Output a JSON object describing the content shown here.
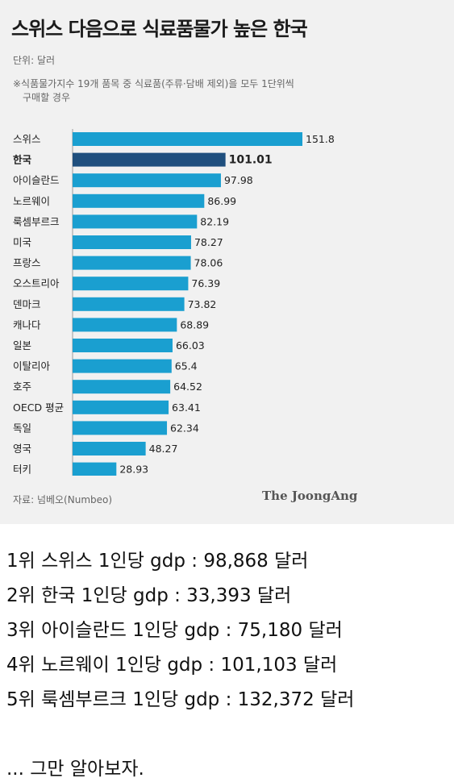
{
  "chart_data": {
    "type": "bar",
    "orientation": "horizontal",
    "title": "스위스 다음으로 식료품물가 높은 한국",
    "unit": "단위: 달러",
    "note": [
      "※식품물가지수 19개 품목 중 식료품(주류·담배 제외)을 모두 1단위씩",
      "구매할 경우"
    ],
    "categories": [
      "스위스",
      "한국",
      "아이슬란드",
      "노르웨이",
      "룩셈부르크",
      "미국",
      "프랑스",
      "오스트리아",
      "덴마크",
      "캐나다",
      "일본",
      "이탈리아",
      "호주",
      "OECD 평균",
      "독일",
      "영국",
      "터키"
    ],
    "values": [
      151.8,
      101.01,
      97.98,
      86.99,
      82.19,
      78.27,
      78.06,
      76.39,
      73.82,
      68.89,
      66.03,
      65.4,
      64.52,
      63.41,
      62.34,
      48.27,
      28.93
    ],
    "value_labels": [
      "151.8",
      "101.01",
      "97.98",
      "86.99",
      "82.19",
      "78.27",
      "78.06",
      "76.39",
      "73.82",
      "68.89",
      "66.03",
      "65.4",
      "64.52",
      "63.41",
      "62.34",
      "48.27",
      "28.93"
    ],
    "highlight_index": 1,
    "colors": {
      "bar": "#1a9fd0",
      "highlight": "#1f4f7e"
    },
    "source": "자료: 넘베오(Numbeo)",
    "brand": "The JoongAng"
  },
  "comments": [
    "1위 스위스 1인당 gdp : 98,868 달러",
    "2위 한국 1인당 gdp : 33,393 달러",
    "3위 아이슬란드 1인당 gdp : 75,180 달러",
    "4위 노르웨이 1인당 gdp : 101,103 달러",
    "5위 룩셈부르크  1인당 gdp :  132,372 달러",
    "... 그만 알아보자."
  ]
}
